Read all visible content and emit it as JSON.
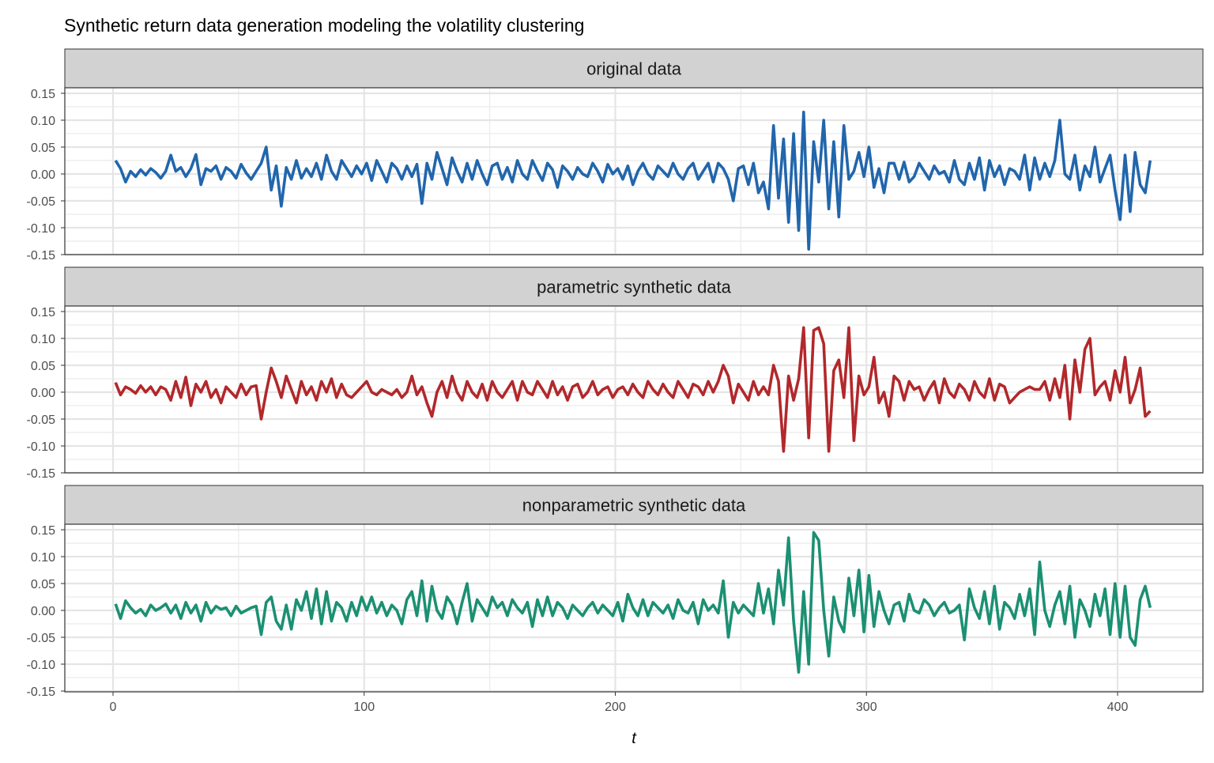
{
  "chart_data": {
    "type": "line",
    "title": "Synthetic return data generation modeling the volatility clustering",
    "xlabel": "t",
    "ylabel": "",
    "xlim": [
      1,
      413
    ],
    "ylim": [
      -0.15,
      0.15
    ],
    "x_ticks": [
      "0",
      "100",
      "200",
      "300",
      "400"
    ],
    "y_ticks": [
      "0.15",
      "0.10",
      "0.05",
      "0.00",
      "-0.05",
      "-0.10",
      "-0.15"
    ],
    "grid": true,
    "legend": "none",
    "t": [
      1,
      3,
      5,
      7,
      9,
      11,
      13,
      15,
      17,
      19,
      21,
      23,
      25,
      27,
      29,
      31,
      33,
      35,
      37,
      39,
      41,
      43,
      45,
      47,
      49,
      51,
      53,
      55,
      57,
      59,
      61,
      63,
      65,
      67,
      69,
      71,
      73,
      75,
      77,
      79,
      81,
      83,
      85,
      87,
      89,
      91,
      93,
      95,
      97,
      99,
      101,
      103,
      105,
      107,
      109,
      111,
      113,
      115,
      117,
      119,
      121,
      123,
      125,
      127,
      129,
      131,
      133,
      135,
      137,
      139,
      141,
      143,
      145,
      147,
      149,
      151,
      153,
      155,
      157,
      159,
      161,
      163,
      165,
      167,
      169,
      171,
      173,
      175,
      177,
      179,
      181,
      183,
      185,
      187,
      189,
      191,
      193,
      195,
      197,
      199,
      201,
      203,
      205,
      207,
      209,
      211,
      213,
      215,
      217,
      219,
      221,
      223,
      225,
      227,
      229,
      231,
      233,
      235,
      237,
      239,
      241,
      243,
      245,
      247,
      249,
      251,
      253,
      255,
      257,
      259,
      261,
      263,
      265,
      267,
      269,
      271,
      273,
      275,
      277,
      279,
      281,
      283,
      285,
      287,
      289,
      291,
      293,
      295,
      297,
      299,
      301,
      303,
      305,
      307,
      309,
      311,
      313,
      315,
      317,
      319,
      321,
      323,
      325,
      327,
      329,
      331,
      333,
      335,
      337,
      339,
      341,
      343,
      345,
      347,
      349,
      351,
      353,
      355,
      357,
      359,
      361,
      363,
      365,
      367,
      369,
      371,
      373,
      375,
      377,
      379,
      381,
      383,
      385,
      387,
      389,
      391,
      393,
      395,
      397,
      399,
      401,
      403,
      405,
      407,
      409,
      411,
      413
    ],
    "series": [
      {
        "name": "original data",
        "color": "#2166ac",
        "values": [
          0.025,
          0.01,
          -0.015,
          0.005,
          -0.005,
          0.008,
          -0.002,
          0.01,
          0.003,
          -0.008,
          0.005,
          0.035,
          0.005,
          0.012,
          -0.005,
          0.01,
          0.036,
          -0.02,
          0.01,
          0.005,
          0.015,
          -0.01,
          0.012,
          0.005,
          -0.008,
          0.018,
          0.002,
          -0.01,
          0.005,
          0.02,
          0.05,
          -0.03,
          0.015,
          -0.06,
          0.012,
          -0.01,
          0.025,
          -0.008,
          0.01,
          -0.005,
          0.02,
          -0.01,
          0.035,
          0.005,
          -0.01,
          0.025,
          0.01,
          -0.005,
          0.015,
          0.0,
          0.02,
          -0.012,
          0.025,
          0.005,
          -0.015,
          0.02,
          0.01,
          -0.01,
          0.015,
          -0.005,
          0.018,
          -0.055,
          0.02,
          -0.01,
          0.04,
          0.01,
          -0.02,
          0.03,
          0.005,
          -0.015,
          0.02,
          -0.01,
          0.025,
          0.0,
          -0.02,
          0.015,
          0.02,
          -0.01,
          0.012,
          -0.015,
          0.025,
          0.0,
          -0.01,
          0.025,
          0.005,
          -0.012,
          0.02,
          0.008,
          -0.025,
          0.015,
          0.005,
          -0.01,
          0.012,
          0.0,
          -0.005,
          0.02,
          0.005,
          -0.015,
          0.018,
          0.0,
          0.01,
          -0.01,
          0.015,
          -0.02,
          0.005,
          0.02,
          0.0,
          -0.01,
          0.015,
          0.005,
          -0.005,
          0.02,
          0.0,
          -0.01,
          0.01,
          0.02,
          -0.01,
          0.005,
          0.02,
          -0.015,
          0.02,
          0.01,
          -0.01,
          -0.05,
          0.01,
          0.015,
          -0.02,
          0.02,
          -0.035,
          -0.015,
          -0.065,
          0.09,
          -0.045,
          0.065,
          -0.09,
          0.075,
          -0.105,
          0.115,
          -0.14,
          0.06,
          -0.015,
          0.1,
          -0.065,
          0.06,
          -0.08,
          0.09,
          -0.01,
          0.005,
          0.04,
          -0.005,
          0.05,
          -0.025,
          0.01,
          -0.035,
          0.02,
          0.02,
          -0.01,
          0.022,
          -0.015,
          -0.005,
          0.02,
          0.005,
          -0.01,
          0.015,
          0.0,
          0.005,
          -0.015,
          0.025,
          -0.01,
          -0.02,
          0.02,
          -0.01,
          0.03,
          -0.03,
          0.025,
          -0.005,
          0.015,
          -0.02,
          0.01,
          0.005,
          -0.01,
          0.035,
          -0.03,
          0.03,
          -0.01,
          0.02,
          -0.005,
          0.025,
          0.1,
          0.0,
          -0.01,
          0.035,
          -0.03,
          0.015,
          -0.005,
          0.05,
          -0.015,
          0.01,
          0.035,
          -0.03,
          -0.085,
          0.035,
          -0.07,
          0.04,
          -0.02,
          -0.035,
          0.025
        ]
      },
      {
        "name": "parametric synthetic data",
        "color": "#b2282b",
        "values": [
          0.018,
          -0.005,
          0.01,
          0.005,
          -0.002,
          0.012,
          0.0,
          0.01,
          -0.005,
          0.01,
          0.005,
          -0.015,
          0.02,
          -0.01,
          0.028,
          -0.025,
          0.015,
          0.0,
          0.02,
          -0.01,
          0.005,
          -0.02,
          0.01,
          0.0,
          -0.01,
          0.015,
          -0.005,
          0.01,
          0.012,
          -0.05,
          0.0,
          0.045,
          0.02,
          -0.01,
          0.03,
          0.005,
          -0.02,
          0.02,
          -0.005,
          0.01,
          -0.015,
          0.02,
          0.0,
          0.025,
          -0.01,
          0.015,
          -0.005,
          -0.01,
          0.0,
          0.01,
          0.02,
          0.0,
          -0.005,
          0.005,
          0.0,
          -0.005,
          0.005,
          -0.01,
          0.0,
          0.03,
          -0.005,
          0.01,
          -0.02,
          -0.045,
          0.0,
          0.02,
          -0.01,
          0.03,
          0.0,
          -0.015,
          0.02,
          0.0,
          -0.01,
          0.015,
          -0.015,
          0.02,
          0.0,
          -0.01,
          0.005,
          0.02,
          -0.015,
          0.02,
          0.0,
          -0.005,
          0.02,
          0.005,
          -0.01,
          0.02,
          -0.005,
          0.01,
          -0.015,
          0.01,
          0.015,
          -0.01,
          0.0,
          0.02,
          -0.005,
          0.005,
          0.01,
          -0.01,
          0.005,
          0.01,
          -0.005,
          0.015,
          0.0,
          -0.01,
          0.02,
          0.005,
          -0.005,
          0.015,
          0.0,
          -0.01,
          0.02,
          0.005,
          -0.01,
          0.015,
          0.01,
          -0.005,
          0.02,
          0.0,
          0.02,
          0.05,
          0.03,
          -0.02,
          0.015,
          0.0,
          -0.015,
          0.02,
          -0.005,
          0.01,
          -0.005,
          0.05,
          0.02,
          -0.11,
          0.03,
          -0.015,
          0.025,
          0.12,
          -0.085,
          0.115,
          0.12,
          0.09,
          -0.11,
          0.04,
          0.06,
          -0.01,
          0.12,
          -0.09,
          0.03,
          -0.005,
          0.01,
          0.065,
          -0.02,
          0.0,
          -0.045,
          0.03,
          0.02,
          -0.015,
          0.02,
          0.005,
          0.01,
          -0.015,
          0.005,
          0.02,
          -0.02,
          0.025,
          0.0,
          -0.01,
          0.015,
          0.005,
          -0.015,
          0.02,
          0.0,
          -0.01,
          0.025,
          -0.015,
          0.015,
          0.01,
          -0.02,
          -0.01,
          0.0,
          0.005,
          0.01,
          0.005,
          0.005,
          0.02,
          -0.015,
          0.025,
          -0.01,
          0.05,
          -0.05,
          0.06,
          0.0,
          0.08,
          0.1,
          -0.005,
          0.01,
          0.02,
          -0.015,
          0.04,
          0.0,
          0.065,
          -0.02,
          0.005,
          0.045,
          -0.045,
          -0.035
        ]
      },
      {
        "name": "nonparametric synthetic data",
        "color": "#1b9073",
        "values": [
          0.012,
          -0.015,
          0.018,
          0.005,
          -0.005,
          0.002,
          -0.01,
          0.01,
          0.0,
          0.005,
          0.012,
          -0.005,
          0.01,
          -0.015,
          0.015,
          -0.005,
          0.01,
          -0.02,
          0.015,
          -0.005,
          0.008,
          0.002,
          0.005,
          -0.01,
          0.008,
          -0.005,
          0.0,
          0.005,
          0.008,
          -0.045,
          0.015,
          0.025,
          -0.02,
          -0.035,
          0.01,
          -0.035,
          0.02,
          0.0,
          0.035,
          -0.015,
          0.04,
          -0.025,
          0.035,
          -0.02,
          0.015,
          0.005,
          -0.02,
          0.015,
          -0.01,
          0.025,
          0.0,
          0.025,
          -0.005,
          0.015,
          -0.01,
          0.01,
          0.0,
          -0.025,
          0.02,
          0.035,
          -0.01,
          0.055,
          -0.02,
          0.045,
          0.0,
          -0.015,
          0.025,
          0.01,
          -0.025,
          0.015,
          0.05,
          -0.02,
          0.02,
          0.005,
          -0.01,
          0.025,
          0.005,
          0.015,
          -0.01,
          0.02,
          0.005,
          -0.005,
          0.015,
          -0.03,
          0.02,
          -0.01,
          0.025,
          -0.01,
          0.015,
          0.005,
          -0.015,
          0.01,
          0.0,
          -0.01,
          0.005,
          0.015,
          -0.005,
          0.01,
          0.0,
          -0.01,
          0.015,
          -0.02,
          0.03,
          0.005,
          -0.01,
          0.02,
          -0.01,
          0.015,
          0.005,
          -0.005,
          0.01,
          -0.015,
          0.02,
          0.0,
          -0.005,
          0.015,
          -0.025,
          0.02,
          0.0,
          0.01,
          -0.005,
          0.055,
          -0.05,
          0.015,
          -0.005,
          0.01,
          0.0,
          -0.01,
          0.05,
          -0.005,
          0.04,
          -0.025,
          0.075,
          0.01,
          0.135,
          -0.02,
          -0.115,
          0.035,
          -0.1,
          0.145,
          0.13,
          0.0,
          -0.085,
          0.025,
          -0.02,
          -0.04,
          0.06,
          -0.01,
          0.075,
          -0.04,
          0.065,
          -0.03,
          0.035,
          0.0,
          -0.025,
          0.01,
          0.015,
          -0.02,
          0.03,
          0.0,
          -0.005,
          0.02,
          0.01,
          -0.01,
          0.005,
          0.015,
          -0.005,
          0.0,
          0.01,
          -0.055,
          0.04,
          0.005,
          -0.015,
          0.035,
          -0.025,
          0.045,
          -0.035,
          0.015,
          0.005,
          -0.015,
          0.03,
          -0.01,
          0.04,
          -0.045,
          0.09,
          0.0,
          -0.03,
          0.01,
          0.035,
          -0.025,
          0.045,
          -0.05,
          0.02,
          0.0,
          -0.03,
          0.03,
          -0.01,
          0.04,
          -0.045,
          0.05,
          -0.05,
          0.045,
          -0.05,
          -0.065,
          0.02,
          0.045,
          0.005
        ]
      }
    ]
  }
}
